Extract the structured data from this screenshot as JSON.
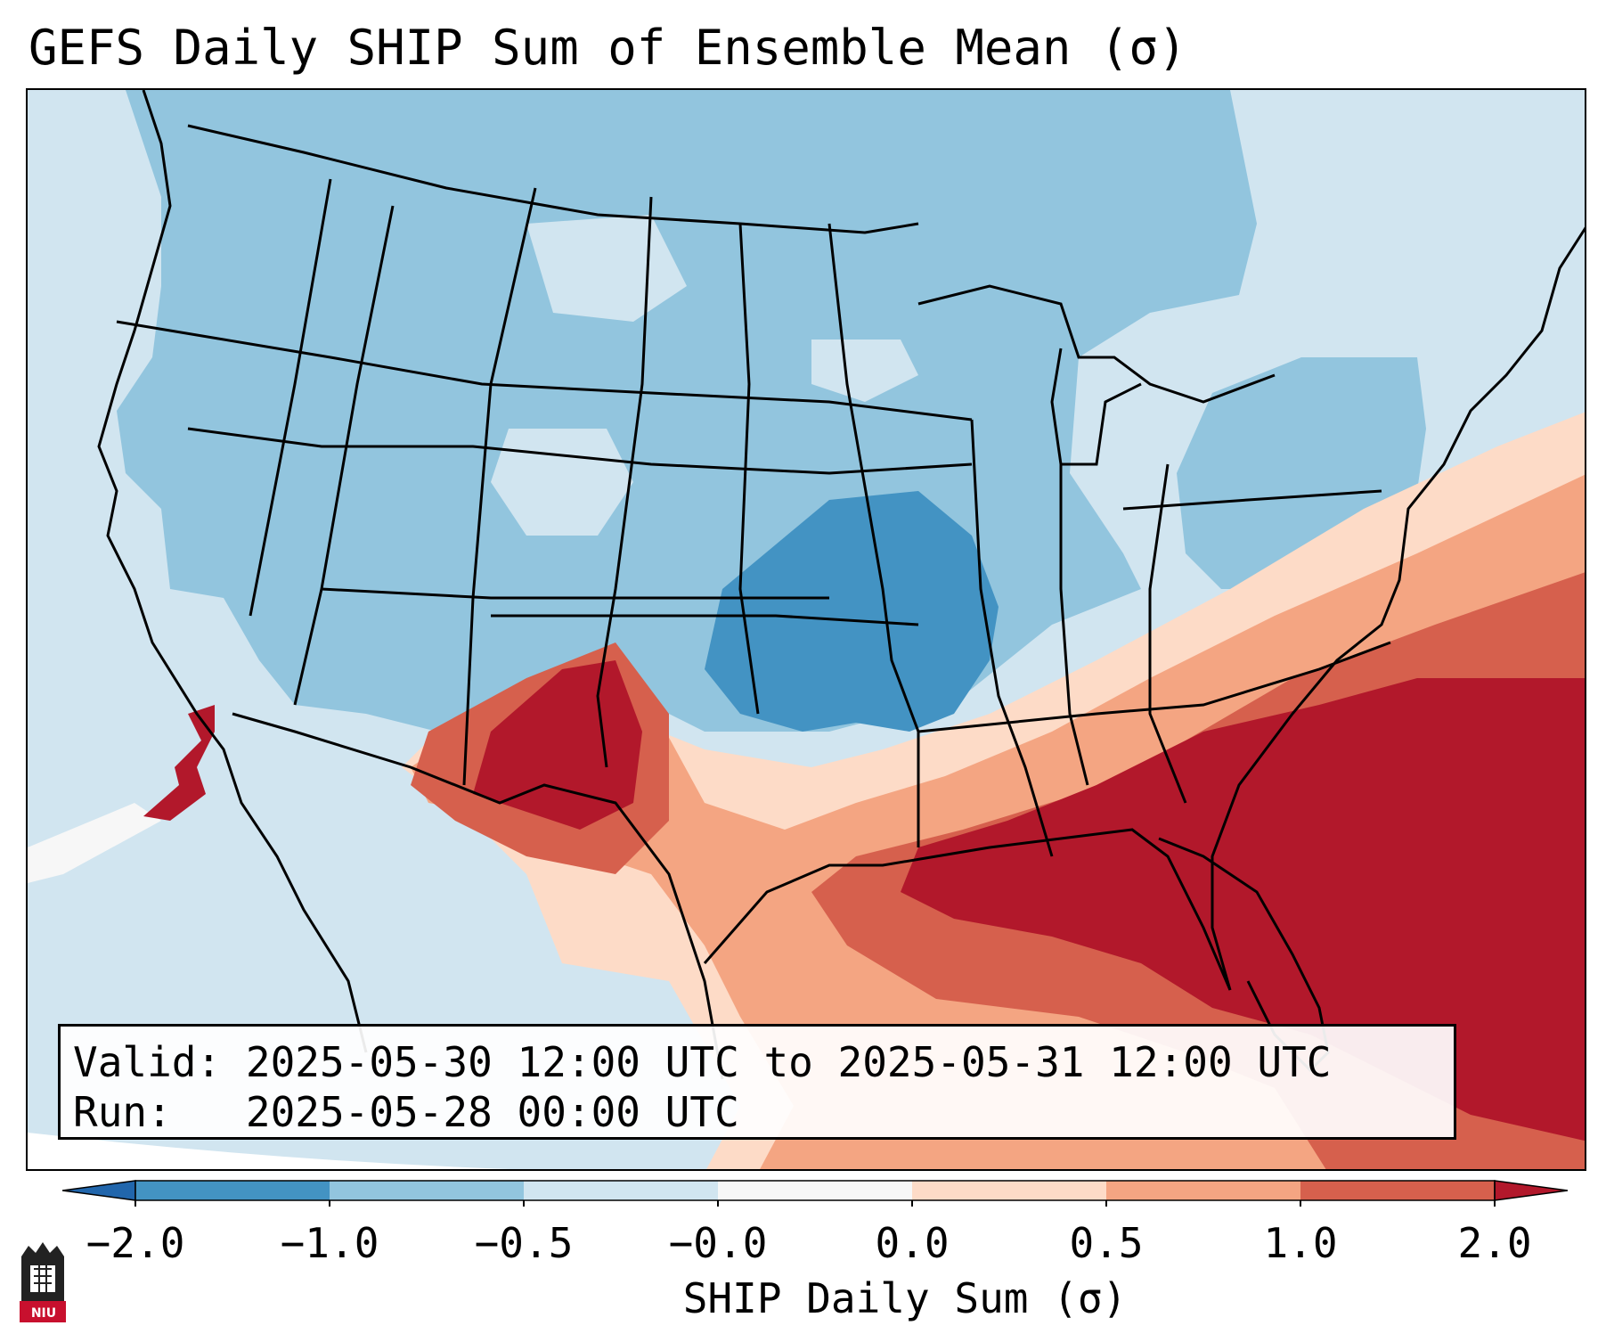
{
  "title": "GEFS Daily SHIP Sum of Ensemble Mean (σ)",
  "info": {
    "valid_label": "Valid:",
    "valid_value": "2025-05-30 12:00 UTC to 2025-05-31 12:00 UTC",
    "run_label": "Run:",
    "run_value": "2025-05-28 00:00 UTC"
  },
  "colorbar": {
    "label": "SHIP Daily Sum (σ)",
    "ticks": [
      "−2.0",
      "−1.0",
      "−0.5",
      "−0.0",
      "0.0",
      "0.5",
      "1.0",
      "2.0"
    ],
    "colors": [
      "#4393c3",
      "#92c5de",
      "#d1e5f0",
      "#f7f7f7",
      "#fddbc7",
      "#f4a582",
      "#d6604d"
    ],
    "under_color": "#2166ac",
    "over_color": "#b2182b"
  },
  "map": {
    "region": "Contiguous United States",
    "field": "SHIP daily sum standardized anomaly"
  },
  "logo": {
    "text": "NIU"
  }
}
